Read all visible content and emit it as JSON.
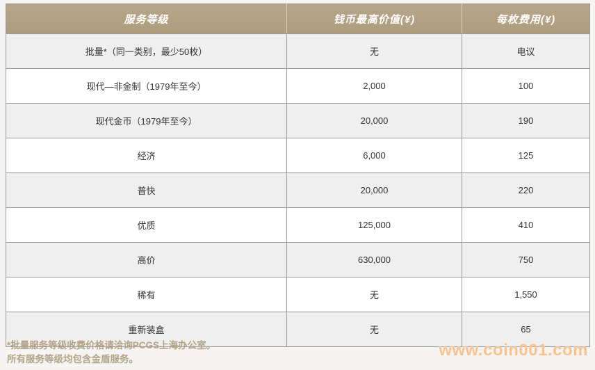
{
  "table": {
    "headers": {
      "service_level": "服务等级",
      "max_coin_value": "钱币最高价值(¥)",
      "fee_per_coin": "每枚费用(¥)"
    },
    "rows": [
      {
        "service": "批量*（同一类别，最少50枚）",
        "max_value": "无",
        "fee": "电议"
      },
      {
        "service": "现代—非金制（1979年至今）",
        "max_value": "2,000",
        "fee": "100"
      },
      {
        "service": "现代金币（1979年至今）",
        "max_value": "20,000",
        "fee": "190"
      },
      {
        "service": "经济",
        "max_value": "6,000",
        "fee": "125"
      },
      {
        "service": "普快",
        "max_value": "20,000",
        "fee": "220"
      },
      {
        "service": "优质",
        "max_value": "125,000",
        "fee": "410"
      },
      {
        "service": "高价",
        "max_value": "630,000",
        "fee": "750"
      },
      {
        "service": "稀有",
        "max_value": "无",
        "fee": "1,550"
      },
      {
        "service": "重新装盒",
        "max_value": "无",
        "fee": "65"
      }
    ]
  },
  "footnote": {
    "line1": "*批量服务等级收费价格请洽询PCGS上海办公室。",
    "line2": "所有服务等级均包含金盾服务。"
  },
  "watermark": {
    "text": "www.coin001.com"
  },
  "colors": {
    "header_bg": "#b2a083",
    "header_text": "#ffffff",
    "row_alt_bg": "#efefef",
    "row_bg": "#ffffff",
    "cell_border": "#9a9a9a",
    "body_text": "#333333",
    "footnote_text": "#b2a287",
    "watermark_text": "#f7c28d",
    "page_bg": "#f5f4f2"
  }
}
